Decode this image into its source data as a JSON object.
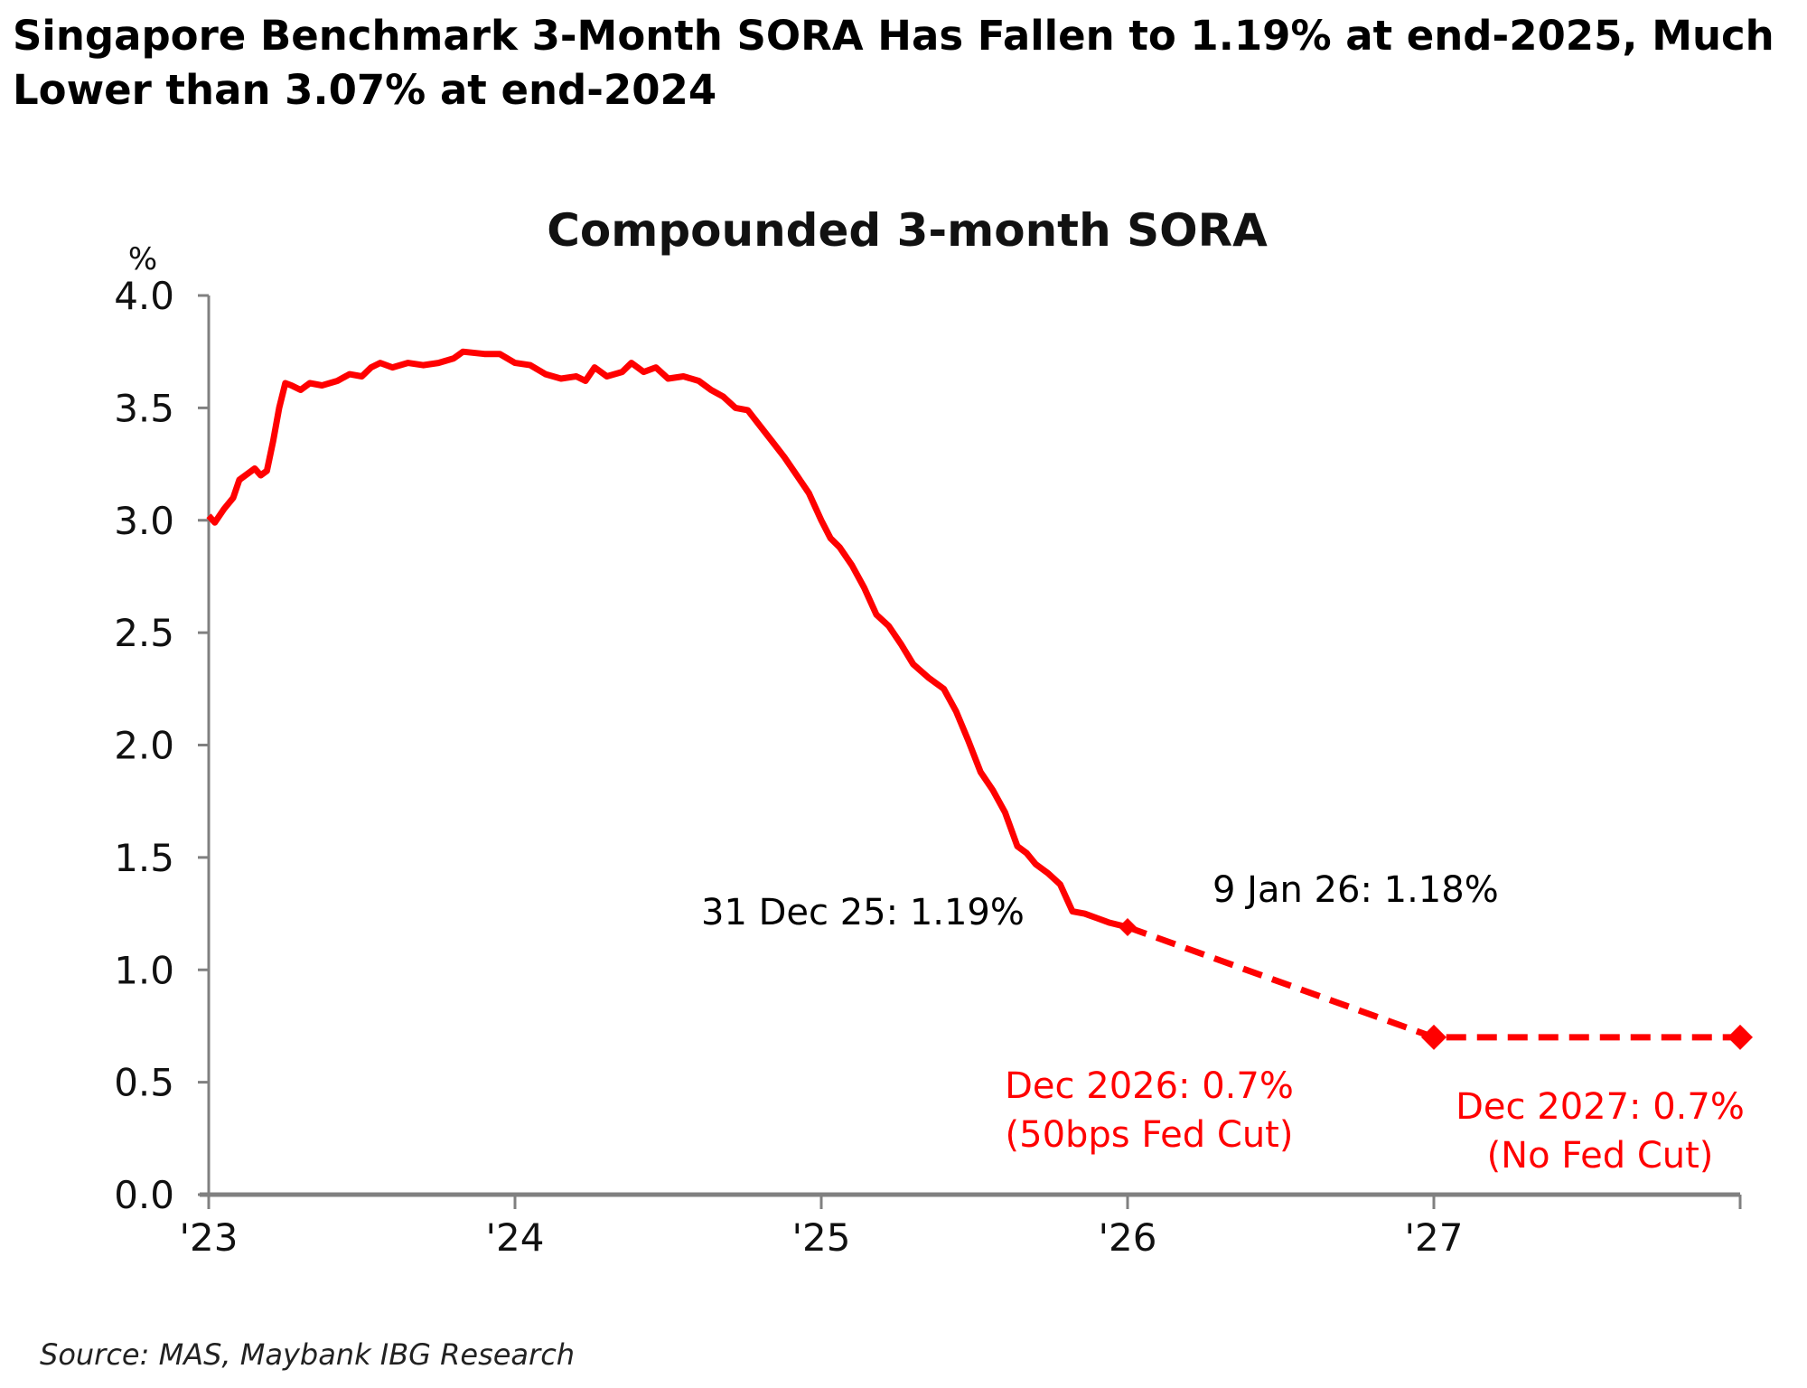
{
  "headline": "Singapore Benchmark 3-Month SORA Has Fallen to 1.19% at end-2025, Much Lower than 3.07% at end-2024",
  "source": "Source: MAS, Maybank IBG Research",
  "chart_data": {
    "type": "line",
    "title": "Compounded 3-month SORA",
    "ylabel": "%",
    "xlabel": "",
    "ylim": [
      0,
      4.0
    ],
    "xlim": [
      2023.0,
      2028.0
    ],
    "grid": false,
    "y_ticks": [
      "0.0",
      "0.5",
      "1.0",
      "1.5",
      "2.0",
      "2.5",
      "3.0",
      "3.5",
      "4.0"
    ],
    "x_ticks": [
      {
        "value": 2023,
        "label": "'23"
      },
      {
        "value": 2024,
        "label": "'24"
      },
      {
        "value": 2025,
        "label": "'25"
      },
      {
        "value": 2026,
        "label": "'26"
      },
      {
        "value": 2027,
        "label": "'27"
      },
      {
        "value": 2028,
        "label": ""
      }
    ],
    "color": "#ff0000",
    "series": [
      {
        "style": "solid",
        "x": [
          2023.0,
          2023.02,
          2023.05,
          2023.08,
          2023.1,
          2023.13,
          2023.15,
          2023.17,
          2023.19,
          2023.21,
          2023.23,
          2023.25,
          2023.27,
          2023.3,
          2023.33,
          2023.37,
          2023.42,
          2023.46,
          2023.5,
          2023.53,
          2023.56,
          2023.6,
          2023.65,
          2023.7,
          2023.75,
          2023.8,
          2023.83,
          2023.9,
          2023.95,
          2024.0,
          2024.05,
          2024.1,
          2024.15,
          2024.2,
          2024.23,
          2024.26,
          2024.3,
          2024.35,
          2024.38,
          2024.42,
          2024.46,
          2024.5,
          2024.55,
          2024.6,
          2024.64,
          2024.68,
          2024.72,
          2024.76,
          2024.8,
          2024.84,
          2024.88,
          2024.92,
          2024.96,
          2025.0,
          2025.03,
          2025.06,
          2025.1,
          2025.14,
          2025.18,
          2025.22,
          2025.26,
          2025.3,
          2025.35,
          2025.4,
          2025.44,
          2025.48,
          2025.52,
          2025.56,
          2025.6,
          2025.64,
          2025.67,
          2025.7,
          2025.74,
          2025.78,
          2025.82,
          2025.86,
          2025.9,
          2025.94,
          2026.0
        ],
        "y": [
          3.02,
          2.99,
          3.05,
          3.1,
          3.18,
          3.21,
          3.23,
          3.2,
          3.22,
          3.35,
          3.5,
          3.61,
          3.6,
          3.58,
          3.61,
          3.6,
          3.62,
          3.65,
          3.64,
          3.68,
          3.7,
          3.68,
          3.7,
          3.69,
          3.7,
          3.72,
          3.75,
          3.74,
          3.74,
          3.7,
          3.69,
          3.65,
          3.63,
          3.64,
          3.62,
          3.68,
          3.64,
          3.66,
          3.7,
          3.66,
          3.68,
          3.63,
          3.64,
          3.62,
          3.58,
          3.55,
          3.5,
          3.49,
          3.42,
          3.35,
          3.28,
          3.2,
          3.12,
          3.0,
          2.92,
          2.88,
          2.8,
          2.7,
          2.58,
          2.53,
          2.45,
          2.36,
          2.3,
          2.25,
          2.15,
          2.02,
          1.88,
          1.8,
          1.7,
          1.55,
          1.52,
          1.47,
          1.43,
          1.38,
          1.26,
          1.25,
          1.23,
          1.21,
          1.19
        ]
      },
      {
        "style": "dashed",
        "x": [
          2026.0,
          2027.0,
          2028.0
        ],
        "y": [
          1.19,
          0.7,
          0.7
        ],
        "markers": "diamond"
      }
    ],
    "annotations": [
      {
        "text": "31 Dec 25: 1.19%",
        "color": "#000000"
      },
      {
        "text": "9 Jan 26: 1.18%",
        "color": "#000000"
      },
      {
        "text": [
          "Dec 2026: 0.7%",
          "(50bps Fed Cut)"
        ],
        "color": "#ff0000"
      },
      {
        "text": [
          "Dec 2027: 0.7%",
          "(No Fed Cut)"
        ],
        "color": "#ff0000"
      }
    ]
  }
}
